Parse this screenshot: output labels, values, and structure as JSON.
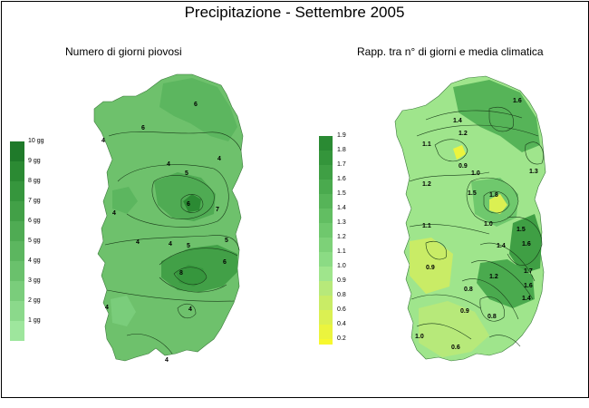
{
  "title": "Precipitazione - Settembre 2005",
  "maps": [
    {
      "subtitle": "Numero di giorni piovosi",
      "legend": [
        {
          "label": "10 gg",
          "color": "#1f7a2a"
        },
        {
          "label": "9 gg",
          "color": "#2b8a33"
        },
        {
          "label": "8 gg",
          "color": "#36963d"
        },
        {
          "label": "7 gg",
          "color": "#42a047"
        },
        {
          "label": "6 gg",
          "color": "#4fab53"
        },
        {
          "label": "5 gg",
          "color": "#5cb65f"
        },
        {
          "label": "4 gg",
          "color": "#6ac16c"
        },
        {
          "label": "3 gg",
          "color": "#7acd7b"
        },
        {
          "label": "2 gg",
          "color": "#8bd98b"
        },
        {
          "label": "1 gg",
          "color": "#9ee69d"
        }
      ],
      "contour_labels": [
        "4",
        "6",
        "6",
        "4",
        "5",
        "4",
        "6",
        "4",
        "7",
        "6",
        "4",
        "4",
        "5",
        "5",
        "8",
        "4",
        "4",
        "4"
      ]
    },
    {
      "subtitle": "Rapp. tra n° di giorni e media climatica",
      "legend": [
        {
          "label": "1.9",
          "color": "#2a8a33"
        },
        {
          "label": "1.8",
          "color": "#34953b"
        },
        {
          "label": "1.7",
          "color": "#3f9f44"
        },
        {
          "label": "1.6",
          "color": "#4aaa4e"
        },
        {
          "label": "1.5",
          "color": "#56b458"
        },
        {
          "label": "1.4",
          "color": "#62be62"
        },
        {
          "label": "1.3",
          "color": "#6fc86d"
        },
        {
          "label": "1.2",
          "color": "#7dd178"
        },
        {
          "label": "1.1",
          "color": "#8bdb84"
        },
        {
          "label": "1.0",
          "color": "#9fe58c"
        },
        {
          "label": "0.9",
          "color": "#b7e97a"
        },
        {
          "label": "0.8",
          "color": "#c9ec66"
        },
        {
          "label": "0.6",
          "color": "#dbf052"
        },
        {
          "label": "0.4",
          "color": "#ebf43e"
        },
        {
          "label": "0.2",
          "color": "#f7f82e"
        }
      ],
      "contour_labels": [
        "1.6",
        "1.4",
        "1.2",
        "1.1",
        "0.9",
        "1.0",
        "1.2",
        "1.5",
        "1.3",
        "1.8",
        "1.1",
        "1.0",
        "1.4",
        "1.5",
        "1.6",
        "0.9",
        "1.7",
        "1.6",
        "1.4",
        "0.8",
        "1.2",
        "0.8",
        "0.9",
        "0.6",
        "1.0"
      ]
    }
  ]
}
